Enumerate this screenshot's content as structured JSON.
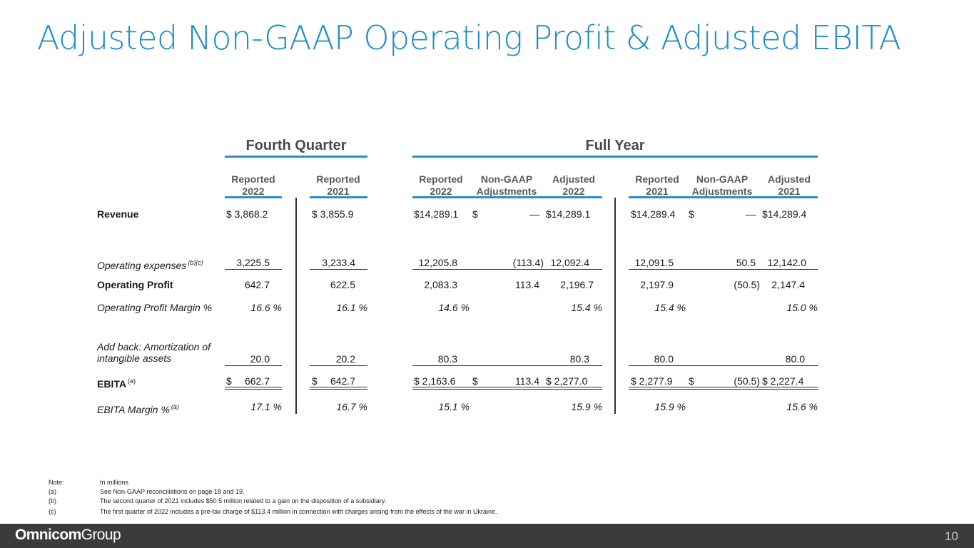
{
  "title": "Adjusted Non-GAAP Operating Profit & Adjusted EBITA",
  "groups": {
    "fourth_quarter": "Fourth Quarter",
    "full_year": "Full Year"
  },
  "columns": [
    {
      "line1": "Reported",
      "line2": "2022"
    },
    {
      "line1": "Reported",
      "line2": "2021"
    },
    {
      "line1": "Reported",
      "line2": "2022"
    },
    {
      "line1": "Non-GAAP",
      "line2": "Adjustments"
    },
    {
      "line1": "Adjusted",
      "line2": "2022"
    },
    {
      "line1": "Reported",
      "line2": "2021"
    },
    {
      "line1": "Non-GAAP",
      "line2": "Adjustments"
    },
    {
      "line1": "Adjusted",
      "line2": "2021"
    }
  ],
  "rows": {
    "revenue": {
      "label": "Revenue",
      "values": [
        "$ 3,868.2",
        "$ 3,855.9",
        "$14,289.1",
        "$",
        "—",
        "$14,289.1",
        "$14,289.4",
        "$",
        "—",
        "$14,289.4"
      ]
    },
    "opex": {
      "label": "Operating expenses",
      "sup": "(b)(c)",
      "values": [
        "3,225.5",
        "3,233.4",
        "12,205.8",
        "(113.4)",
        "12,092.4",
        "12,091.5",
        "50.5",
        "12,142.0"
      ]
    },
    "op_profit": {
      "label": "Operating Profit",
      "values": [
        "642.7",
        "622.5",
        "2,083.3",
        "113.4",
        "2,196.7",
        "2,197.9",
        "(50.5)",
        "2,147.4"
      ]
    },
    "op_margin": {
      "label": "Operating Profit Margin %",
      "values": [
        "16.6 %",
        "16.1 %",
        "14.6 %",
        "15.4 %",
        "15.4 %",
        "15.0 %"
      ]
    },
    "amort": {
      "label_line1": "Add back: Amortization of",
      "label_line2": "intangible assets",
      "values": [
        "20.0",
        "20.2",
        "80.3",
        "80.3",
        "80.0",
        "80.0"
      ]
    },
    "ebita": {
      "label": "EBITA",
      "sup": "(a)",
      "values": [
        "$",
        "662.7",
        "$",
        "642.7",
        "$ 2,163.6",
        "$",
        "113.4",
        "$ 2,277.0",
        "$ 2,277.9",
        "$",
        "(50.5)",
        "$ 2,227.4"
      ]
    },
    "ebita_margin": {
      "label": "EBITA Margin %",
      "sup": "(a)",
      "values": [
        "17.1 %",
        "16.7 %",
        "15.1 %",
        "15.9 %",
        "15.9 %",
        "15.6 %"
      ]
    }
  },
  "notes": [
    {
      "key": "Note:",
      "text": "In millions"
    },
    {
      "key": "(a)",
      "text": "See Non-GAAP reconciliations on page 18 and 19."
    },
    {
      "key": "(b)",
      "text": "The second quarter of 2021 includes $50.5 million related to a gain on the disposition of a subsidiary."
    },
    {
      "key": "(c)",
      "text": "The first quarter of 2022 includes a pre-tax charge of $113.4 million in connection with charges arising from the effects of the war in Ukraine."
    }
  ],
  "footer": {
    "logo_part1": "Omnicom",
    "logo_part2": "Group",
    "page_number": "10"
  }
}
